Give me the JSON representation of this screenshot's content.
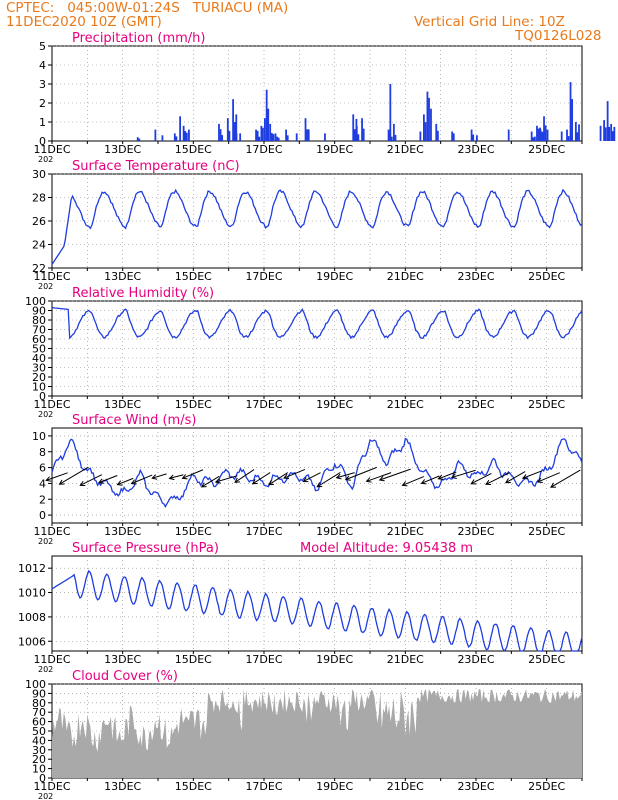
{
  "header": {
    "line1": "CPTEC:   045:00W-01:24S   TURIACU (MA)",
    "line2": "11DEC2020 10Z (GMT)",
    "grid_note": "Vertical Grid Line: 10Z",
    "model_id": "TQ0126L028",
    "model_altitude": "Model Altitude: 9.05438 m"
  },
  "colors": {
    "header": "#e87a1b",
    "title": "#e6007e",
    "series": "#1f3de0",
    "cloud": "#a9a9a9",
    "vector": "#000000"
  },
  "x_tick_labels": [
    "11DEC",
    "13DEC",
    "15DEC",
    "17DEC",
    "19DEC",
    "21DEC",
    "23DEC",
    "25DEC"
  ],
  "x_extra_label": "202",
  "chart_data": [
    {
      "type": "bar",
      "title": "Precipitation (mm/h)",
      "ylim": [
        0,
        5
      ],
      "yticks": [
        0,
        1,
        2,
        3,
        4,
        5
      ],
      "events": [
        [
          2.4,
          0.2
        ],
        [
          2.9,
          0.6
        ],
        [
          3.1,
          0.3
        ],
        [
          3.45,
          0.4
        ],
        [
          3.6,
          1.3
        ],
        [
          3.7,
          0.8
        ],
        [
          3.85,
          0.6
        ],
        [
          4.7,
          0.9
        ],
        [
          4.95,
          1.2
        ],
        [
          5.1,
          2.2
        ],
        [
          5.15,
          1.0
        ],
        [
          5.3,
          0.4
        ],
        [
          5.75,
          0.6
        ],
        [
          5.9,
          0.8
        ],
        [
          6.0,
          1.2
        ],
        [
          6.05,
          2.7
        ],
        [
          6.15,
          0.9
        ],
        [
          6.3,
          0.4
        ],
        [
          6.6,
          0.6
        ],
        [
          6.9,
          0.4
        ],
        [
          7.15,
          1.2
        ],
        [
          7.7,
          0.4
        ],
        [
          8.5,
          1.4
        ],
        [
          8.6,
          0.8
        ],
        [
          8.75,
          1.2
        ],
        [
          9.5,
          0.6
        ],
        [
          9.55,
          3.0
        ],
        [
          9.65,
          0.9
        ],
        [
          10.4,
          0.5
        ],
        [
          10.5,
          1.4
        ],
        [
          10.6,
          2.6
        ],
        [
          10.7,
          1.7
        ],
        [
          10.85,
          0.9
        ],
        [
          11.3,
          0.5
        ],
        [
          11.85,
          0.6
        ],
        [
          12.0,
          0.3
        ],
        [
          12.9,
          0.6
        ],
        [
          13.55,
          0.5
        ],
        [
          13.7,
          0.8
        ],
        [
          13.8,
          0.6
        ],
        [
          13.9,
          1.3
        ],
        [
          14.0,
          0.6
        ],
        [
          14.4,
          0.5
        ],
        [
          14.55,
          0.6
        ],
        [
          14.65,
          3.1
        ],
        [
          14.8,
          1.0
        ],
        [
          15.5,
          0.8
        ],
        [
          15.6,
          1.1
        ],
        [
          15.7,
          2.1
        ],
        [
          15.8,
          0.9
        ]
      ]
    },
    {
      "type": "line",
      "title": "Surface Temperature (nC)",
      "ylim": [
        22,
        30
      ],
      "yticks": [
        22,
        24,
        26,
        28,
        30
      ],
      "daily_min": 25.5,
      "daily_max": 28.5,
      "start": 22.3
    },
    {
      "type": "line",
      "title": "Relative Humidity (%)",
      "ylim": [
        0,
        100
      ],
      "yticks": [
        0,
        10,
        20,
        30,
        40,
        50,
        60,
        70,
        80,
        90,
        100
      ],
      "daily_min": 62,
      "daily_max": 90
    },
    {
      "type": "line",
      "title": "Surface Wind (m/s)",
      "ylim": [
        -1,
        11
      ],
      "yticks": [
        0,
        2,
        4,
        6,
        8,
        10
      ]
    },
    {
      "type": "line",
      "title": "Surface Pressure (hPa)",
      "ylim": [
        1005.2,
        1013
      ],
      "yticks": [
        1006,
        1008,
        1010,
        1012
      ]
    },
    {
      "type": "area",
      "title": "Cloud Cover (%)",
      "ylim": [
        0,
        100
      ],
      "yticks": [
        0,
        10,
        20,
        30,
        40,
        50,
        60,
        70,
        80,
        90,
        100
      ]
    }
  ]
}
